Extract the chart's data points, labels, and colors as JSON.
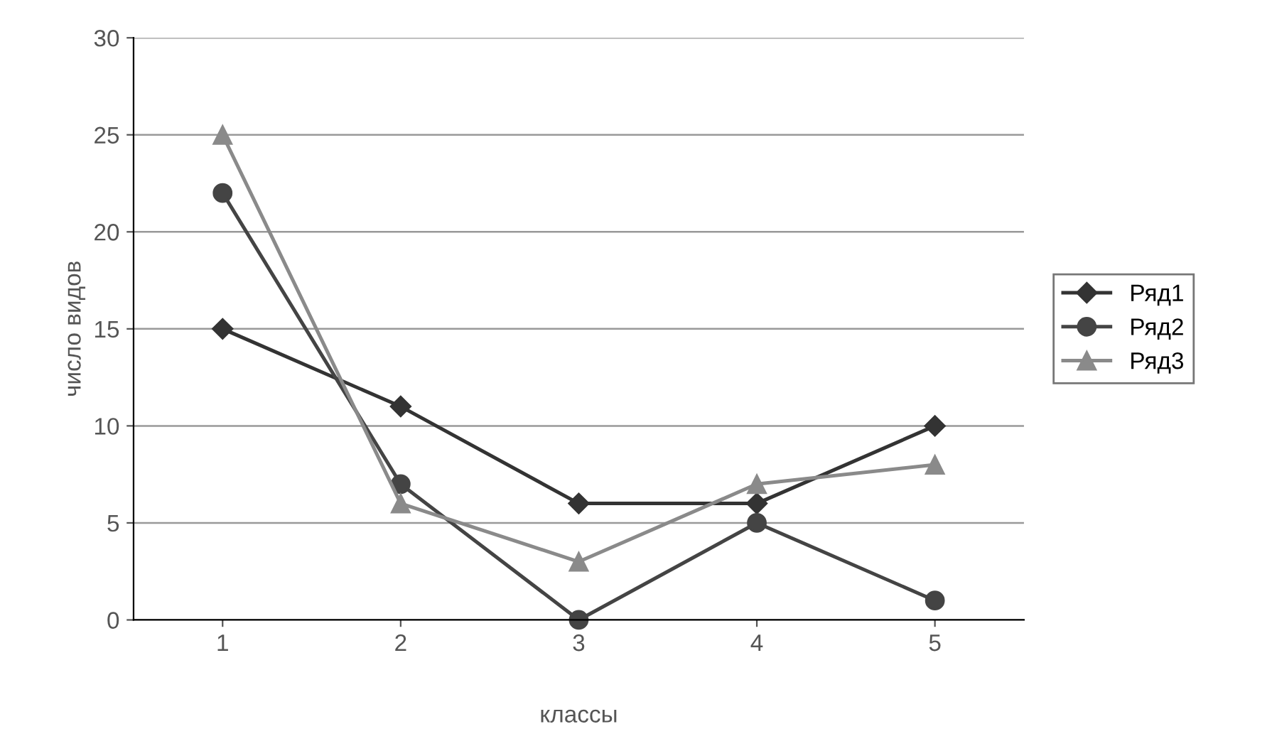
{
  "chart_data": {
    "type": "line",
    "xlabel": "классы",
    "ylabel": "число видов",
    "categories": [
      "1",
      "2",
      "3",
      "4",
      "5"
    ],
    "series": [
      {
        "name": "Ряд1",
        "color": "#333333",
        "marker": "diamond",
        "values": [
          15,
          11,
          6,
          6,
          10
        ]
      },
      {
        "name": "Ряд2",
        "color": "#444444",
        "marker": "circle",
        "values": [
          22,
          7,
          0,
          5,
          1
        ]
      },
      {
        "name": "Ряд3",
        "color": "#8a8a8a",
        "marker": "triangle",
        "values": [
          25,
          6,
          3,
          7,
          8
        ]
      }
    ],
    "ylim": [
      0,
      30
    ],
    "yticks": [
      0,
      5,
      10,
      15,
      20,
      25,
      30
    ],
    "grid": "y",
    "legend": "right"
  }
}
